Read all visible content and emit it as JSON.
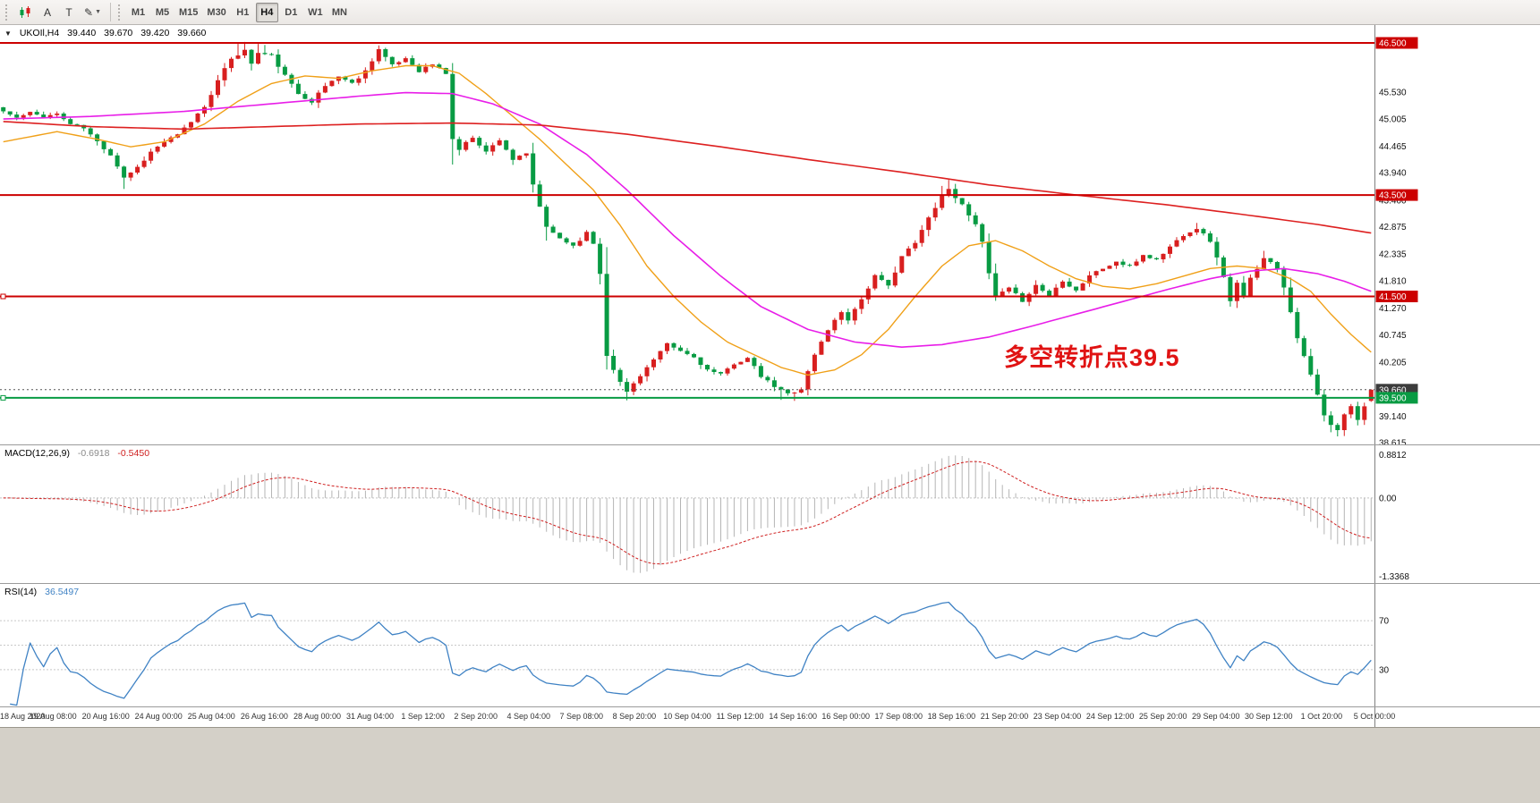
{
  "toolbar": {
    "tools": [
      {
        "name": "charts-tool-icon",
        "type": "icon-candles",
        "label": ""
      },
      {
        "name": "text-label-tool",
        "type": "text",
        "label": "A"
      },
      {
        "name": "text-tool",
        "type": "text",
        "label": "T"
      },
      {
        "name": "line-studies-tool",
        "type": "text",
        "label": "✎",
        "dropdown": "▼"
      }
    ],
    "timeframes": [
      "M1",
      "M5",
      "M15",
      "M30",
      "H1",
      "H4",
      "D1",
      "W1",
      "MN"
    ],
    "active_timeframe": "H4"
  },
  "chart_header": {
    "marker": "▼",
    "symbol_period": "UKOIl,H4",
    "open": "39.440",
    "high": "39.670",
    "low": "39.420",
    "close": "39.660"
  },
  "annotation": {
    "text": "多空转折点39.5",
    "color": "#e01313"
  },
  "indicators": {
    "macd": {
      "label": "MACD(12,26,9)",
      "value_main": "-0.6918",
      "value_signal": "-0.5450",
      "axis_labels": [
        "0.8812",
        "0.00",
        "-1.3368"
      ],
      "fast": 12,
      "slow": 26,
      "signal": 9,
      "histogram_color": "#b5b5b5",
      "signal_color": "#cf2020"
    },
    "rsi": {
      "label": "RSI(14)",
      "value": "36.5497",
      "period": 14,
      "levels": [
        70,
        50,
        30
      ],
      "axis_labels": [
        "70",
        "30"
      ],
      "line_color": "#3f82c4"
    }
  },
  "price_axis": {
    "labels": [
      {
        "text": "45.530",
        "price": 45.53
      },
      {
        "text": "45.005",
        "price": 45.005
      },
      {
        "text": "44.465",
        "price": 44.465
      },
      {
        "text": "43.940",
        "price": 43.94
      },
      {
        "text": "43.400",
        "price": 43.4
      },
      {
        "text": "42.875",
        "price": 42.875
      },
      {
        "text": "42.335",
        "price": 42.335
      },
      {
        "text": "41.810",
        "price": 41.81
      },
      {
        "text": "41.270",
        "price": 41.27
      },
      {
        "text": "40.745",
        "price": 40.745
      },
      {
        "text": "40.205",
        "price": 40.205
      },
      {
        "text": "39.140",
        "price": 39.14
      },
      {
        "text": "38.615",
        "price": 38.615
      }
    ],
    "badges": [
      {
        "text": "46.500",
        "price": 46.5,
        "color": "#cc0000"
      },
      {
        "text": "43.500",
        "price": 43.5,
        "color": "#cc0000"
      },
      {
        "text": "41.500",
        "price": 41.5,
        "color": "#cc0000"
      },
      {
        "text": "39.660",
        "price": 39.66,
        "color": "#3c3c3c"
      },
      {
        "text": "39.500",
        "price": 39.5,
        "color": "#089b43"
      }
    ]
  },
  "time_axis": {
    "labels": [
      "18 Aug 2020",
      "19 Aug 08:00",
      "20 Aug 16:00",
      "24 Aug 00:00",
      "25 Aug 04:00",
      "26 Aug 16:00",
      "28 Aug 00:00",
      "31 Aug 04:00",
      "1 Sep 12:00",
      "2 Sep 20:00",
      "4 Sep 04:00",
      "7 Sep 08:00",
      "8 Sep 20:00",
      "10 Sep 04:00",
      "11 Sep 12:00",
      "14 Sep 16:00",
      "16 Sep 00:00",
      "17 Sep 08:00",
      "18 Sep 16:00",
      "21 Sep 20:00",
      "23 Sep 04:00",
      "24 Sep 12:00",
      "25 Sep 20:00",
      "29 Sep 04:00",
      "30 Sep 12:00",
      "1 Oct 20:00",
      "5 Oct 00:00"
    ]
  },
  "chart_data": {
    "type": "candlestick",
    "symbol": "UKOIL",
    "timeframe": "H4",
    "bar_count": 205,
    "price_min": 38.581,
    "price_max": 46.853,
    "up_color": "#d81f1f",
    "down_color": "#089b43",
    "seed": 11,
    "close_waypoints": [
      [
        0,
        45.15
      ],
      [
        2,
        45.02
      ],
      [
        4,
        45.12
      ],
      [
        6,
        45.05
      ],
      [
        8,
        45.1
      ],
      [
        10,
        44.9
      ],
      [
        12,
        44.82
      ],
      [
        14,
        44.55
      ],
      [
        16,
        44.3
      ],
      [
        18,
        43.85
      ],
      [
        20,
        44.05
      ],
      [
        22,
        44.35
      ],
      [
        24,
        44.55
      ],
      [
        26,
        44.68
      ],
      [
        28,
        44.95
      ],
      [
        30,
        45.25
      ],
      [
        32,
        45.75
      ],
      [
        34,
        46.2
      ],
      [
        36,
        46.35
      ],
      [
        37,
        46.1
      ],
      [
        38,
        46.3
      ],
      [
        40,
        46.25
      ],
      [
        42,
        45.85
      ],
      [
        44,
        45.5
      ],
      [
        46,
        45.35
      ],
      [
        48,
        45.65
      ],
      [
        50,
        45.85
      ],
      [
        52,
        45.7
      ],
      [
        54,
        45.95
      ],
      [
        56,
        46.38
      ],
      [
        58,
        46.05
      ],
      [
        60,
        46.2
      ],
      [
        62,
        45.95
      ],
      [
        64,
        46.08
      ],
      [
        66,
        45.9
      ],
      [
        67,
        44.6
      ],
      [
        68,
        44.4
      ],
      [
        70,
        44.65
      ],
      [
        72,
        44.35
      ],
      [
        74,
        44.6
      ],
      [
        76,
        44.2
      ],
      [
        78,
        44.3
      ],
      [
        79,
        43.7
      ],
      [
        81,
        42.85
      ],
      [
        83,
        42.65
      ],
      [
        85,
        42.5
      ],
      [
        87,
        42.75
      ],
      [
        88,
        42.55
      ],
      [
        89,
        41.95
      ],
      [
        90,
        40.35
      ],
      [
        92,
        39.8
      ],
      [
        93,
        39.62
      ],
      [
        95,
        39.95
      ],
      [
        97,
        40.25
      ],
      [
        99,
        40.55
      ],
      [
        101,
        40.42
      ],
      [
        103,
        40.3
      ],
      [
        105,
        40.05
      ],
      [
        107,
        39.95
      ],
      [
        109,
        40.18
      ],
      [
        111,
        40.28
      ],
      [
        113,
        39.92
      ],
      [
        115,
        39.72
      ],
      [
        117,
        39.58
      ],
      [
        119,
        39.68
      ],
      [
        121,
        40.35
      ],
      [
        123,
        40.85
      ],
      [
        125,
        41.2
      ],
      [
        126,
        41.05
      ],
      [
        128,
        41.45
      ],
      [
        130,
        41.9
      ],
      [
        132,
        41.7
      ],
      [
        134,
        42.3
      ],
      [
        136,
        42.55
      ],
      [
        138,
        43.05
      ],
      [
        140,
        43.5
      ],
      [
        141,
        43.62
      ],
      [
        143,
        43.3
      ],
      [
        145,
        42.95
      ],
      [
        146,
        42.55
      ],
      [
        147,
        41.95
      ],
      [
        148,
        41.5
      ],
      [
        150,
        41.65
      ],
      [
        152,
        41.42
      ],
      [
        154,
        41.72
      ],
      [
        156,
        41.52
      ],
      [
        158,
        41.82
      ],
      [
        160,
        41.62
      ],
      [
        162,
        41.92
      ],
      [
        164,
        42.05
      ],
      [
        166,
        42.18
      ],
      [
        168,
        42.08
      ],
      [
        170,
        42.32
      ],
      [
        172,
        42.22
      ],
      [
        174,
        42.48
      ],
      [
        176,
        42.72
      ],
      [
        178,
        42.85
      ],
      [
        180,
        42.6
      ],
      [
        182,
        41.9
      ],
      [
        183,
        41.4
      ],
      [
        184,
        41.75
      ],
      [
        185,
        41.5
      ],
      [
        186,
        41.85
      ],
      [
        188,
        42.28
      ],
      [
        190,
        42.05
      ],
      [
        191,
        41.7
      ],
      [
        192,
        41.2
      ],
      [
        193,
        40.7
      ],
      [
        194,
        40.3
      ],
      [
        195,
        39.95
      ],
      [
        196,
        39.55
      ],
      [
        197,
        39.15
      ],
      [
        198,
        38.95
      ],
      [
        199,
        38.85
      ],
      [
        200,
        39.18
      ],
      [
        201,
        39.32
      ],
      [
        202,
        39.08
      ],
      [
        203,
        39.35
      ],
      [
        204,
        39.66
      ]
    ],
    "high_spikes": [
      [
        35,
        46.5
      ],
      [
        36,
        46.52
      ],
      [
        38,
        46.48
      ],
      [
        39,
        46.46
      ],
      [
        56,
        46.45
      ],
      [
        57,
        46.3
      ],
      [
        140,
        43.68
      ],
      [
        141,
        43.8
      ],
      [
        142,
        43.72
      ],
      [
        178,
        42.95
      ],
      [
        188,
        42.4
      ]
    ],
    "low_spikes": [
      [
        18,
        43.62
      ],
      [
        79,
        43.55
      ],
      [
        81,
        42.6
      ],
      [
        90,
        40.2
      ],
      [
        93,
        39.45
      ],
      [
        116,
        39.46
      ],
      [
        118,
        39.44
      ],
      [
        198,
        38.82
      ],
      [
        199,
        38.74
      ]
    ],
    "last_bar": [
      39.44,
      39.67,
      39.42,
      39.66
    ],
    "horizontal_lines": [
      {
        "price": 46.5,
        "color": "#cc0000",
        "width": 2,
        "handles": false,
        "dashed": false
      },
      {
        "price": 43.5,
        "color": "#cc0000",
        "width": 2,
        "handles": false,
        "dashed": false
      },
      {
        "price": 41.5,
        "color": "#cc0000",
        "width": 2,
        "handles": true,
        "dashed": false
      },
      {
        "price": 39.5,
        "color": "#089b43",
        "width": 2,
        "handles": true,
        "dashed": false
      },
      {
        "price": 39.66,
        "color": "#555555",
        "width": 1,
        "handles": false,
        "dashed": true
      }
    ],
    "moving_averages": [
      {
        "name": "ma-fast",
        "color": "#f0a018",
        "width": 1.4,
        "waypoints": [
          [
            0,
            44.55
          ],
          [
            8,
            44.75
          ],
          [
            14,
            44.6
          ],
          [
            19,
            44.45
          ],
          [
            24,
            44.55
          ],
          [
            30,
            44.9
          ],
          [
            35,
            45.35
          ],
          [
            40,
            45.7
          ],
          [
            45,
            45.85
          ],
          [
            50,
            45.8
          ],
          [
            55,
            45.95
          ],
          [
            60,
            46.05
          ],
          [
            64,
            46.05
          ],
          [
            68,
            45.9
          ],
          [
            72,
            45.5
          ],
          [
            76,
            45.05
          ],
          [
            80,
            44.6
          ],
          [
            84,
            44.1
          ],
          [
            88,
            43.6
          ],
          [
            92,
            42.9
          ],
          [
            96,
            42.1
          ],
          [
            100,
            41.5
          ],
          [
            104,
            41.0
          ],
          [
            108,
            40.6
          ],
          [
            112,
            40.35
          ],
          [
            116,
            40.1
          ],
          [
            120,
            39.95
          ],
          [
            124,
            40.05
          ],
          [
            128,
            40.35
          ],
          [
            132,
            40.85
          ],
          [
            136,
            41.5
          ],
          [
            140,
            42.1
          ],
          [
            144,
            42.5
          ],
          [
            148,
            42.6
          ],
          [
            152,
            42.4
          ],
          [
            156,
            42.1
          ],
          [
            160,
            41.85
          ],
          [
            164,
            41.7
          ],
          [
            168,
            41.65
          ],
          [
            172,
            41.75
          ],
          [
            176,
            41.9
          ],
          [
            180,
            42.05
          ],
          [
            184,
            42.1
          ],
          [
            188,
            42.05
          ],
          [
            192,
            41.85
          ],
          [
            195,
            41.6
          ],
          [
            198,
            41.15
          ],
          [
            201,
            40.75
          ],
          [
            204,
            40.4
          ]
        ]
      },
      {
        "name": "ma-medium",
        "color": "#e81ee8",
        "width": 1.6,
        "waypoints": [
          [
            0,
            45.0
          ],
          [
            13,
            45.05
          ],
          [
            27,
            45.15
          ],
          [
            40,
            45.3
          ],
          [
            53,
            45.45
          ],
          [
            60,
            45.52
          ],
          [
            67,
            45.5
          ],
          [
            73,
            45.3
          ],
          [
            80,
            44.9
          ],
          [
            87,
            44.3
          ],
          [
            93,
            43.6
          ],
          [
            100,
            42.7
          ],
          [
            107,
            41.9
          ],
          [
            113,
            41.3
          ],
          [
            120,
            40.85
          ],
          [
            127,
            40.6
          ],
          [
            134,
            40.5
          ],
          [
            140,
            40.55
          ],
          [
            147,
            40.7
          ],
          [
            153,
            40.9
          ],
          [
            160,
            41.15
          ],
          [
            167,
            41.4
          ],
          [
            174,
            41.65
          ],
          [
            180,
            41.85
          ],
          [
            186,
            42.0
          ],
          [
            191,
            42.05
          ],
          [
            196,
            41.95
          ],
          [
            200,
            41.8
          ],
          [
            204,
            41.6
          ]
        ]
      },
      {
        "name": "ma-slow",
        "color": "#dd2020",
        "width": 1.6,
        "waypoints": [
          [
            0,
            44.95
          ],
          [
            13,
            44.85
          ],
          [
            27,
            44.8
          ],
          [
            40,
            44.85
          ],
          [
            53,
            44.9
          ],
          [
            67,
            44.92
          ],
          [
            80,
            44.88
          ],
          [
            93,
            44.7
          ],
          [
            107,
            44.45
          ],
          [
            120,
            44.2
          ],
          [
            134,
            43.95
          ],
          [
            147,
            43.7
          ],
          [
            160,
            43.5
          ],
          [
            174,
            43.3
          ],
          [
            187,
            43.08
          ],
          [
            196,
            42.92
          ],
          [
            204,
            42.75
          ]
        ]
      }
    ]
  },
  "colors": {
    "toolbar_bg": "#f1efec",
    "panel_border": "#9b9b9b",
    "axis_text": "#111111",
    "bottom_strip": "#d4d0c8",
    "chart_bg": "#ffffff"
  }
}
